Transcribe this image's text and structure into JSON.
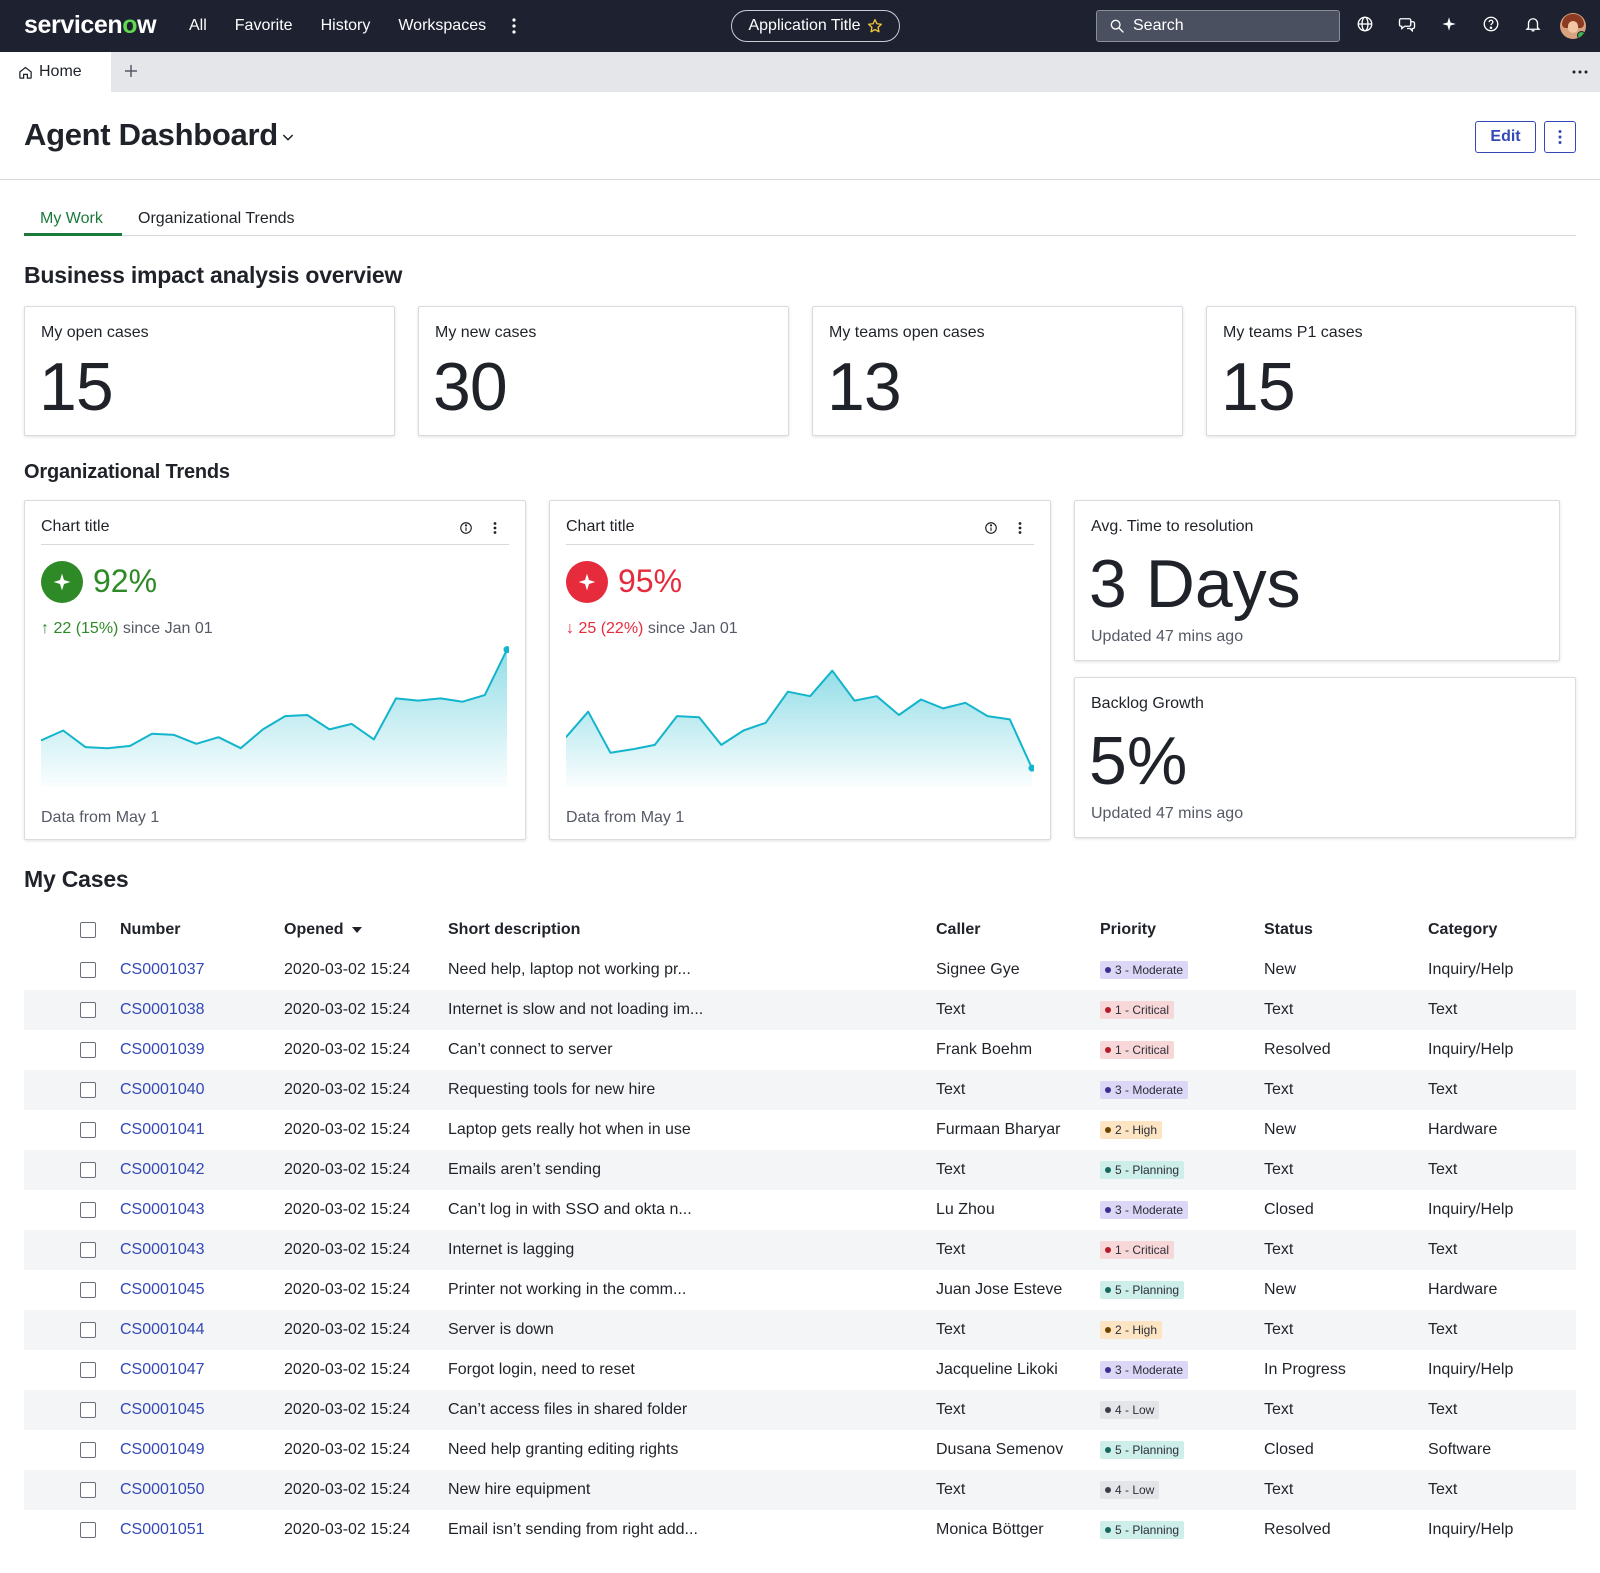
{
  "nav": {
    "logo_text": "servicen",
    "logo_o": "o",
    "logo_end": "w",
    "links": [
      "All",
      "Favorite",
      "History",
      "Workspaces"
    ],
    "app_title": "Application Title",
    "search_placeholder": "Search"
  },
  "tabs_bar": {
    "home_label": "Home"
  },
  "page": {
    "title": "Agent Dashboard",
    "edit_label": "Edit",
    "tabs": [
      "My Work",
      "Organizational Trends"
    ]
  },
  "sections": {
    "overview": "Business impact analysis overview",
    "trends": "Organizational Trends",
    "cases": "My Cases"
  },
  "kpis": [
    {
      "label": "My open cases",
      "value": "15"
    },
    {
      "label": "My new cases",
      "value": "30"
    },
    {
      "label": "My teams open cases",
      "value": "13"
    },
    {
      "label": "My teams P1 cases",
      "value": "15"
    }
  ],
  "chart_data": [
    {
      "type": "area",
      "title": "Chart title",
      "headline": "92%",
      "delta": "22 (15%)",
      "delta_direction": "up",
      "since": "since Jan 01",
      "footer": "Data from May 1",
      "color": "#12b5cb",
      "accent": "#2e8a26",
      "values": [
        42,
        51,
        36,
        35,
        37,
        48,
        47,
        39,
        45,
        35,
        52,
        64,
        65,
        52,
        57,
        43,
        80,
        78,
        80,
        77,
        83,
        124
      ],
      "ylim": [
        0,
        130
      ]
    },
    {
      "type": "area",
      "title": "Chart title",
      "headline": "95%",
      "delta": "25 (22%)",
      "delta_direction": "down",
      "since": "since Jan 01",
      "footer": "Data from May 1",
      "color": "#12b5cb",
      "accent": "#e52b3c",
      "values": [
        45,
        68,
        31,
        34,
        38,
        64,
        63,
        38,
        51,
        58,
        86,
        82,
        105,
        78,
        82,
        65,
        79,
        71,
        76,
        64,
        61,
        17
      ],
      "ylim": [
        0,
        130
      ]
    }
  ],
  "stats": [
    {
      "label": "Avg. Time to resolution",
      "value": "3 Days",
      "updated": "Updated 47 mins ago"
    },
    {
      "label": "Backlog Growth",
      "value": "5%",
      "updated": "Updated 47 mins ago"
    }
  ],
  "table": {
    "columns": [
      "Number",
      "Opened",
      "Short description",
      "Caller",
      "Priority",
      "Status",
      "Category"
    ],
    "priority_colors": {
      "3 - Moderate": {
        "bg": "#dcd6f7",
        "dot": "#3a2f8c"
      },
      "1 - Critical": {
        "bg": "#f8d7d9",
        "dot": "#b31b2b"
      },
      "2 - High": {
        "bg": "#fde5c3",
        "dot": "#6e4300"
      },
      "5 - Planning": {
        "bg": "#cdeee9",
        "dot": "#18665c"
      },
      "4 - Low": {
        "bg": "#e4e5e8",
        "dot": "#3c3f47"
      }
    },
    "rows": [
      [
        "CS0001037",
        "2020-03-02 15:24",
        "Need help, laptop not working pr...",
        "Signee Gye",
        "3 - Moderate",
        "New",
        "Inquiry/Help"
      ],
      [
        "CS0001038",
        "2020-03-02 15:24",
        "Internet is slow and not loading im...",
        "Text",
        "1 - Critical",
        "Text",
        "Text"
      ],
      [
        "CS0001039",
        "2020-03-02 15:24",
        "Can’t connect to server",
        "Frank Boehm",
        "1 - Critical",
        "Resolved",
        "Inquiry/Help"
      ],
      [
        "CS0001040",
        "2020-03-02 15:24",
        "Requesting tools for new hire",
        "Text",
        "3 - Moderate",
        "Text",
        "Text"
      ],
      [
        "CS0001041",
        "2020-03-02 15:24",
        "Laptop gets really hot when in use",
        "Furmaan Bharyar",
        "2 - High",
        "New",
        "Hardware"
      ],
      [
        "CS0001042",
        "2020-03-02 15:24",
        "Emails aren’t sending",
        "Text",
        "5 - Planning",
        "Text",
        "Text"
      ],
      [
        "CS0001043",
        "2020-03-02 15:24",
        "Can’t log in with SSO and okta n...",
        "Lu Zhou",
        "3 - Moderate",
        "Closed",
        "Inquiry/Help"
      ],
      [
        "CS0001043",
        "2020-03-02 15:24",
        "Internet is lagging",
        "Text",
        "1 - Critical",
        "Text",
        "Text"
      ],
      [
        "CS0001045",
        "2020-03-02 15:24",
        "Printer not working in the comm...",
        "Juan Jose Esteve",
        "5 - Planning",
        "New",
        "Hardware"
      ],
      [
        "CS0001044",
        "2020-03-02 15:24",
        "Server is down",
        "Text",
        "2 - High",
        "Text",
        "Text"
      ],
      [
        "CS0001047",
        "2020-03-02 15:24",
        "Forgot login, need to reset",
        "Jacqueline Likoki",
        "3 - Moderate",
        "In Progress",
        "Inquiry/Help"
      ],
      [
        "CS0001045",
        "2020-03-02 15:24",
        "Can’t access files in shared folder",
        "Text",
        "4 - Low",
        "Text",
        "Text"
      ],
      [
        "CS0001049",
        "2020-03-02 15:24",
        "Need help granting editing rights",
        "Dusana Semenov",
        "5 - Planning",
        "Closed",
        "Software"
      ],
      [
        "CS0001050",
        "2020-03-02 15:24",
        "New hire equipment",
        "Text",
        "4 - Low",
        "Text",
        "Text"
      ],
      [
        "CS0001051",
        "2020-03-02 15:24",
        "Email isn’t sending from right add...",
        "Monica Böttger",
        "5 - Planning",
        "Resolved",
        "Inquiry/Help"
      ]
    ]
  }
}
